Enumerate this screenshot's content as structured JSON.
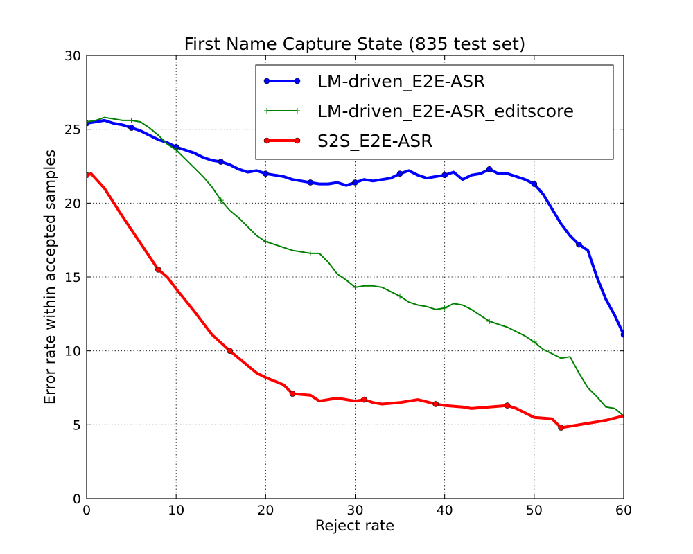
{
  "chart_data": {
    "type": "line",
    "title": "First Name Capture State (835 test set)",
    "xlabel": "Reject rate",
    "ylabel": "Error rate within accepted samples",
    "xlim": [
      0,
      60
    ],
    "ylim": [
      0,
      30
    ],
    "xticks": [
      0,
      10,
      20,
      30,
      40,
      50,
      60
    ],
    "yticks": [
      0,
      5,
      10,
      15,
      20,
      25,
      30
    ],
    "grid": true,
    "legend_position": "top-right",
    "series": [
      {
        "name": "LM-driven_E2E-ASR",
        "color": "#0000ff",
        "marker": "circle",
        "points": [
          [
            0,
            25.4
          ],
          [
            1,
            25.5
          ],
          [
            2,
            25.6
          ],
          [
            3,
            25.4
          ],
          [
            4,
            25.3
          ],
          [
            5,
            25.1
          ],
          [
            6,
            24.9
          ],
          [
            7,
            24.6
          ],
          [
            8,
            24.3
          ],
          [
            9,
            24.1
          ],
          [
            10,
            23.8
          ],
          [
            11,
            23.6
          ],
          [
            12,
            23.4
          ],
          [
            13,
            23.1
          ],
          [
            14,
            22.9
          ],
          [
            15,
            22.8
          ],
          [
            16,
            22.6
          ],
          [
            17,
            22.3
          ],
          [
            18,
            22.1
          ],
          [
            19,
            22.2
          ],
          [
            20,
            22.0
          ],
          [
            21,
            21.9
          ],
          [
            22,
            21.8
          ],
          [
            23,
            21.6
          ],
          [
            24,
            21.5
          ],
          [
            25,
            21.4
          ],
          [
            26,
            21.3
          ],
          [
            27,
            21.3
          ],
          [
            28,
            21.4
          ],
          [
            29,
            21.2
          ],
          [
            30,
            21.4
          ],
          [
            31,
            21.6
          ],
          [
            32,
            21.5
          ],
          [
            33,
            21.6
          ],
          [
            34,
            21.7
          ],
          [
            35,
            22.0
          ],
          [
            36,
            22.2
          ],
          [
            37,
            21.9
          ],
          [
            38,
            21.7
          ],
          [
            39,
            21.8
          ],
          [
            40,
            21.9
          ],
          [
            41,
            22.1
          ],
          [
            42,
            21.6
          ],
          [
            43,
            21.9
          ],
          [
            44,
            22.0
          ],
          [
            45,
            22.3
          ],
          [
            46,
            22.0
          ],
          [
            47,
            22.0
          ],
          [
            48,
            21.8
          ],
          [
            49,
            21.6
          ],
          [
            50,
            21.3
          ],
          [
            51,
            20.6
          ],
          [
            52,
            19.6
          ],
          [
            53,
            18.6
          ],
          [
            54,
            17.8
          ],
          [
            55,
            17.2
          ],
          [
            56,
            16.8
          ],
          [
            57,
            15.0
          ],
          [
            58,
            13.5
          ],
          [
            59,
            12.4
          ],
          [
            60,
            11.1
          ]
        ]
      },
      {
        "name": "LM-driven_E2E-ASR_editscore",
        "color": "#008000",
        "marker": "plus",
        "points": [
          [
            0,
            25.5
          ],
          [
            1,
            25.6
          ],
          [
            2,
            25.8
          ],
          [
            3,
            25.7
          ],
          [
            4,
            25.6
          ],
          [
            5,
            25.6
          ],
          [
            6,
            25.5
          ],
          [
            7,
            25.1
          ],
          [
            8,
            24.6
          ],
          [
            9,
            24.0
          ],
          [
            10,
            23.6
          ],
          [
            11,
            23.0
          ],
          [
            12,
            22.4
          ],
          [
            13,
            21.8
          ],
          [
            14,
            21.1
          ],
          [
            15,
            20.2
          ],
          [
            16,
            19.5
          ],
          [
            17,
            19.0
          ],
          [
            18,
            18.4
          ],
          [
            19,
            17.8
          ],
          [
            20,
            17.4
          ],
          [
            21,
            17.2
          ],
          [
            22,
            17.0
          ],
          [
            23,
            16.8
          ],
          [
            24,
            16.7
          ],
          [
            25,
            16.6
          ],
          [
            26,
            16.6
          ],
          [
            27,
            16.0
          ],
          [
            28,
            15.2
          ],
          [
            29,
            14.8
          ],
          [
            30,
            14.3
          ],
          [
            31,
            14.4
          ],
          [
            32,
            14.4
          ],
          [
            33,
            14.3
          ],
          [
            34,
            14.0
          ],
          [
            35,
            13.7
          ],
          [
            36,
            13.3
          ],
          [
            37,
            13.1
          ],
          [
            38,
            13.0
          ],
          [
            39,
            12.8
          ],
          [
            40,
            12.9
          ],
          [
            41,
            13.2
          ],
          [
            42,
            13.1
          ],
          [
            43,
            12.8
          ],
          [
            44,
            12.4
          ],
          [
            45,
            12.0
          ],
          [
            46,
            11.8
          ],
          [
            47,
            11.6
          ],
          [
            48,
            11.3
          ],
          [
            49,
            11.0
          ],
          [
            50,
            10.6
          ],
          [
            51,
            10.1
          ],
          [
            52,
            9.8
          ],
          [
            53,
            9.5
          ],
          [
            54,
            9.6
          ],
          [
            55,
            8.5
          ],
          [
            56,
            7.5
          ],
          [
            57,
            6.9
          ],
          [
            58,
            6.2
          ],
          [
            59,
            6.1
          ],
          [
            60,
            5.6
          ]
        ]
      },
      {
        "name": "S2S_E2E-ASR",
        "color": "#ff0000",
        "marker": "circle",
        "points": [
          [
            0,
            21.9
          ],
          [
            0.5,
            22.0
          ],
          [
            2,
            21.0
          ],
          [
            4,
            19.1
          ],
          [
            6,
            17.3
          ],
          [
            8,
            15.5
          ],
          [
            9,
            15.0
          ],
          [
            10,
            14.2
          ],
          [
            12,
            12.7
          ],
          [
            14,
            11.1
          ],
          [
            16,
            10.0
          ],
          [
            18,
            9.0
          ],
          [
            19,
            8.5
          ],
          [
            20,
            8.2
          ],
          [
            22,
            7.7
          ],
          [
            23,
            7.1
          ],
          [
            25,
            7.0
          ],
          [
            26,
            6.6
          ],
          [
            28,
            6.8
          ],
          [
            30,
            6.6
          ],
          [
            31,
            6.7
          ],
          [
            32,
            6.5
          ],
          [
            33,
            6.4
          ],
          [
            35,
            6.5
          ],
          [
            37,
            6.7
          ],
          [
            39,
            6.4
          ],
          [
            40,
            6.3
          ],
          [
            42,
            6.2
          ],
          [
            43,
            6.1
          ],
          [
            45,
            6.2
          ],
          [
            47,
            6.3
          ],
          [
            48,
            6.1
          ],
          [
            49,
            5.8
          ],
          [
            50,
            5.5
          ],
          [
            52,
            5.4
          ],
          [
            53,
            4.8
          ],
          [
            55,
            5.0
          ],
          [
            57,
            5.2
          ],
          [
            58,
            5.3
          ],
          [
            60,
            5.6
          ]
        ]
      }
    ]
  }
}
